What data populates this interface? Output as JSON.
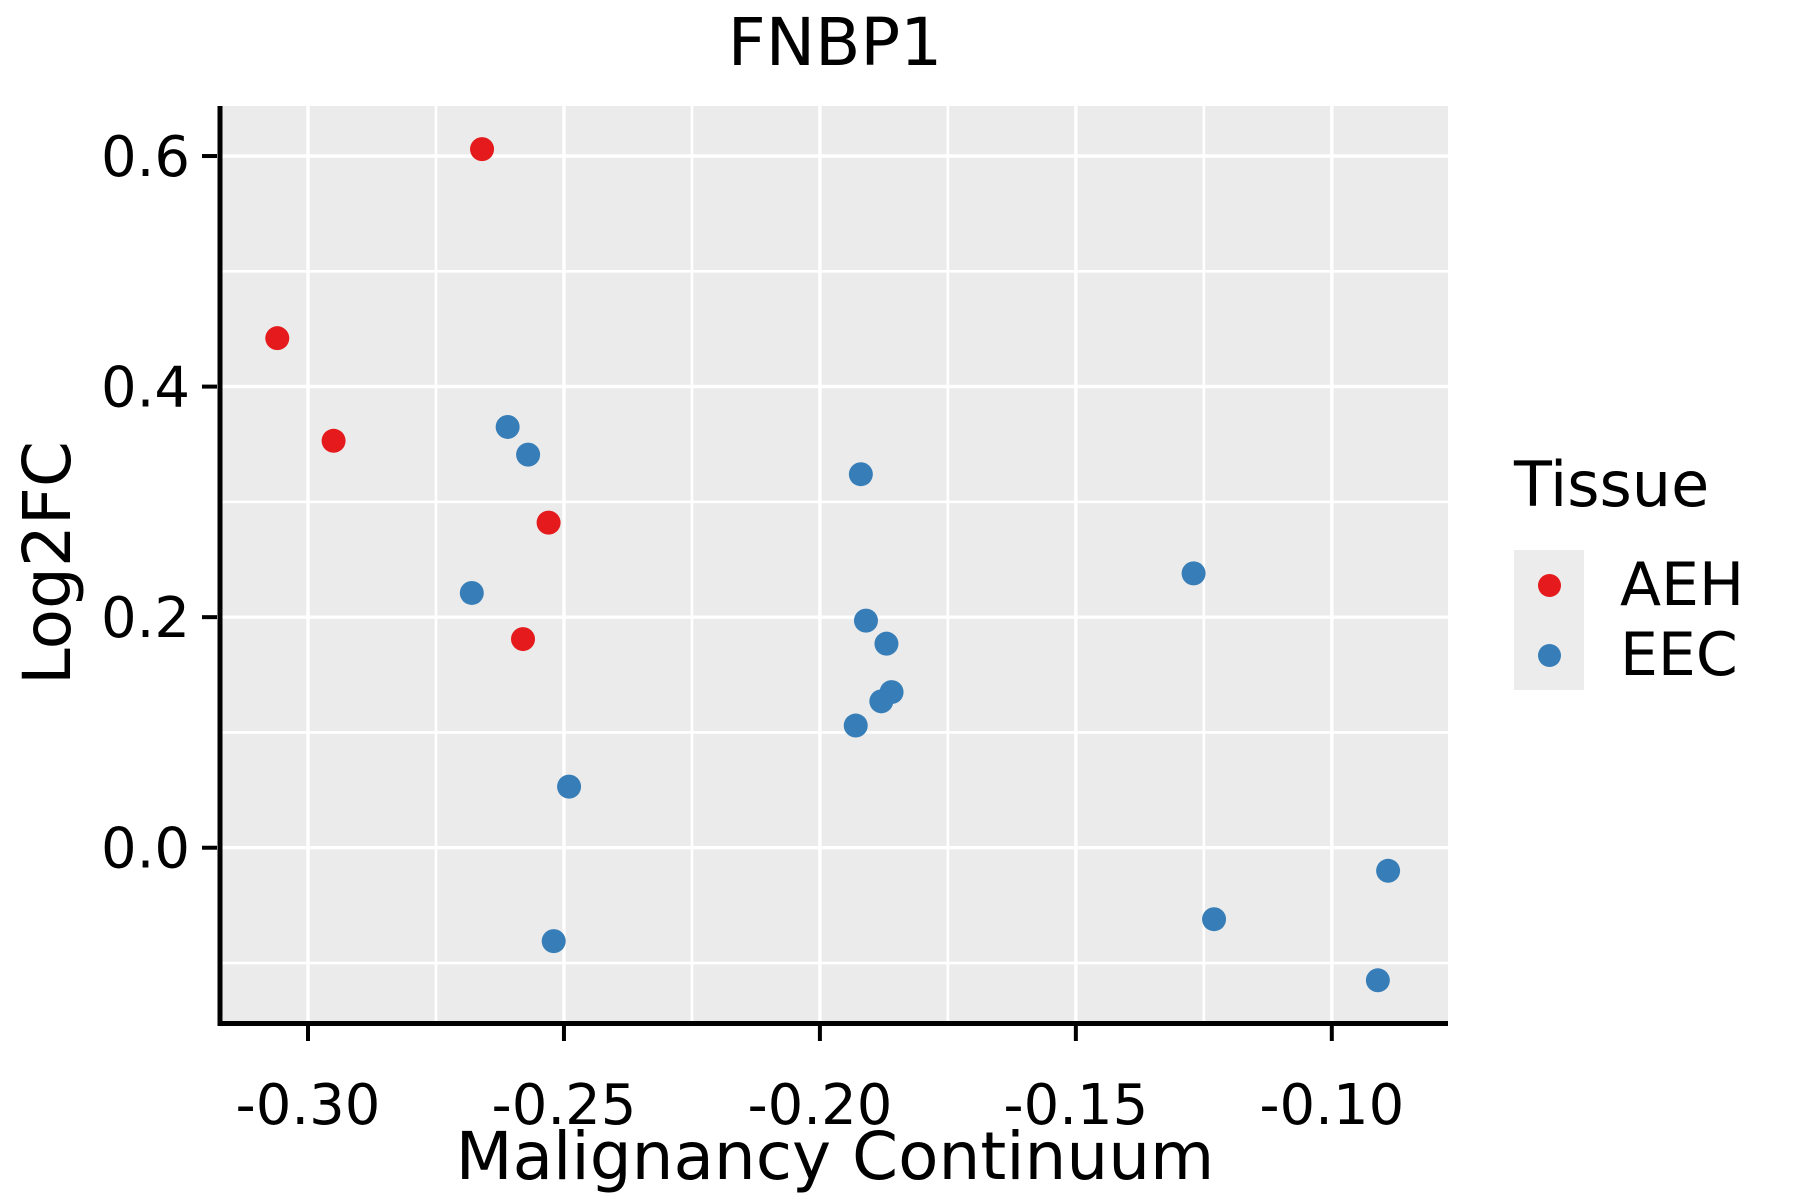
{
  "figure": {
    "title": "FNBP1",
    "x_label": "Malignancy Continuum",
    "y_label": "Log2FC"
  },
  "legend": {
    "title": "Tissue",
    "entries": [
      {
        "label": "AEH",
        "color": "#e41a1c"
      },
      {
        "label": "EEC",
        "color": "#377eb8"
      }
    ]
  },
  "chart_data": {
    "type": "scatter",
    "title": "FNBP1",
    "xlabel": "Malignancy Continuum",
    "ylabel": "Log2FC",
    "xlim": [
      -0.3168,
      -0.0773
    ],
    "ylim": [
      -0.1503,
      0.6434
    ],
    "grid": "on",
    "panel_background": "#ebebeb",
    "gridline_color": "#ffffff",
    "legend_position": "right",
    "x_ticks": [
      {
        "value": -0.3,
        "label": "-0.30"
      },
      {
        "value": -0.25,
        "label": "-0.25"
      },
      {
        "value": -0.2,
        "label": "-0.20"
      },
      {
        "value": -0.15,
        "label": "-0.15"
      },
      {
        "value": -0.1,
        "label": "-0.10"
      }
    ],
    "y_ticks": [
      {
        "value": 0.6,
        "label": "0.6"
      },
      {
        "value": 0.4,
        "label": "0.4"
      },
      {
        "value": 0.2,
        "label": "0.2"
      },
      {
        "value": 0.0,
        "label": "0.0"
      }
    ],
    "x_minor": [
      -0.275,
      -0.225,
      -0.175,
      -0.125
    ],
    "y_minor": [
      0.5,
      0.3,
      0.1,
      -0.1
    ],
    "series": [
      {
        "name": "AEH",
        "color": "#e41a1c",
        "points": [
          [
            -0.266,
            0.606
          ],
          [
            -0.306,
            0.442
          ],
          [
            -0.295,
            0.353
          ],
          [
            -0.253,
            0.282
          ],
          [
            -0.258,
            0.181
          ]
        ]
      },
      {
        "name": "EEC",
        "color": "#377eb8",
        "points": [
          [
            -0.261,
            0.365
          ],
          [
            -0.257,
            0.341
          ],
          [
            -0.268,
            0.221
          ],
          [
            -0.249,
            0.053
          ],
          [
            -0.252,
            -0.081
          ],
          [
            -0.192,
            0.324
          ],
          [
            -0.191,
            0.197
          ],
          [
            -0.187,
            0.177
          ],
          [
            -0.186,
            0.135
          ],
          [
            -0.188,
            0.127
          ],
          [
            -0.193,
            0.106
          ],
          [
            -0.127,
            0.238
          ],
          [
            -0.123,
            -0.062
          ],
          [
            -0.089,
            -0.02
          ],
          [
            -0.091,
            -0.115
          ]
        ]
      }
    ]
  }
}
